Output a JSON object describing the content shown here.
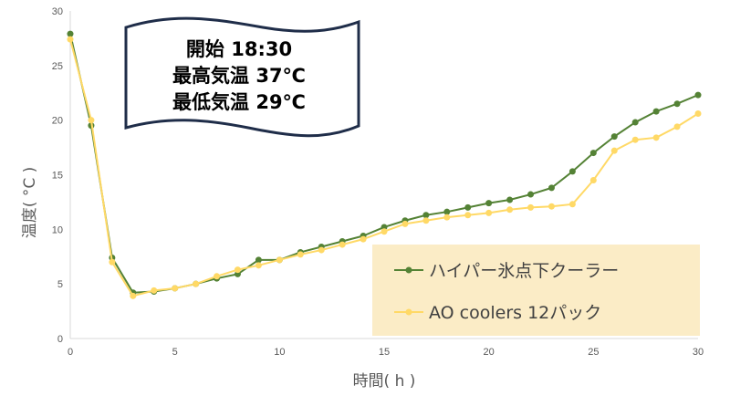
{
  "chart_data": {
    "type": "line",
    "xlabel": "時間( h )",
    "ylabel": "温度( °C )",
    "xlim": [
      0,
      30
    ],
    "ylim": [
      0,
      30
    ],
    "x_ticks": [
      "0",
      "5",
      "10",
      "15",
      "20",
      "25",
      "30"
    ],
    "y_ticks": [
      "0",
      "5",
      "10",
      "15",
      "20",
      "25",
      "30"
    ],
    "grid": false,
    "legend_position": "bottom-right",
    "annotation": {
      "lines": [
        "開始 18:30",
        "最高気温 37℃",
        "最低気温 29℃"
      ]
    },
    "x": [
      0,
      1,
      2,
      3,
      4,
      5,
      6,
      7,
      8,
      9,
      10,
      11,
      12,
      13,
      14,
      15,
      16,
      17,
      18,
      19,
      20,
      21,
      22,
      23,
      24,
      25,
      26,
      27,
      28,
      29,
      30
    ],
    "series": [
      {
        "name": "ハイパー氷点下クーラー",
        "color": "#548235",
        "values": [
          27.9,
          19.5,
          7.4,
          4.2,
          4.3,
          4.6,
          5.0,
          5.5,
          5.9,
          7.2,
          7.2,
          7.9,
          8.4,
          8.9,
          9.4,
          10.2,
          10.8,
          11.3,
          11.6,
          12.0,
          12.4,
          12.7,
          13.2,
          13.8,
          15.3,
          17.0,
          18.5,
          19.8,
          20.8,
          21.5,
          22.3
        ]
      },
      {
        "name": "AO coolers 12パック",
        "color": "#ffd966",
        "values": [
          27.4,
          20.0,
          7.0,
          3.9,
          4.4,
          4.6,
          5.0,
          5.7,
          6.3,
          6.7,
          7.2,
          7.7,
          8.1,
          8.6,
          9.1,
          9.8,
          10.5,
          10.8,
          11.1,
          11.3,
          11.5,
          11.8,
          12.0,
          12.1,
          12.3,
          14.5,
          17.2,
          18.2,
          18.4,
          19.4,
          20.6
        ]
      }
    ]
  }
}
